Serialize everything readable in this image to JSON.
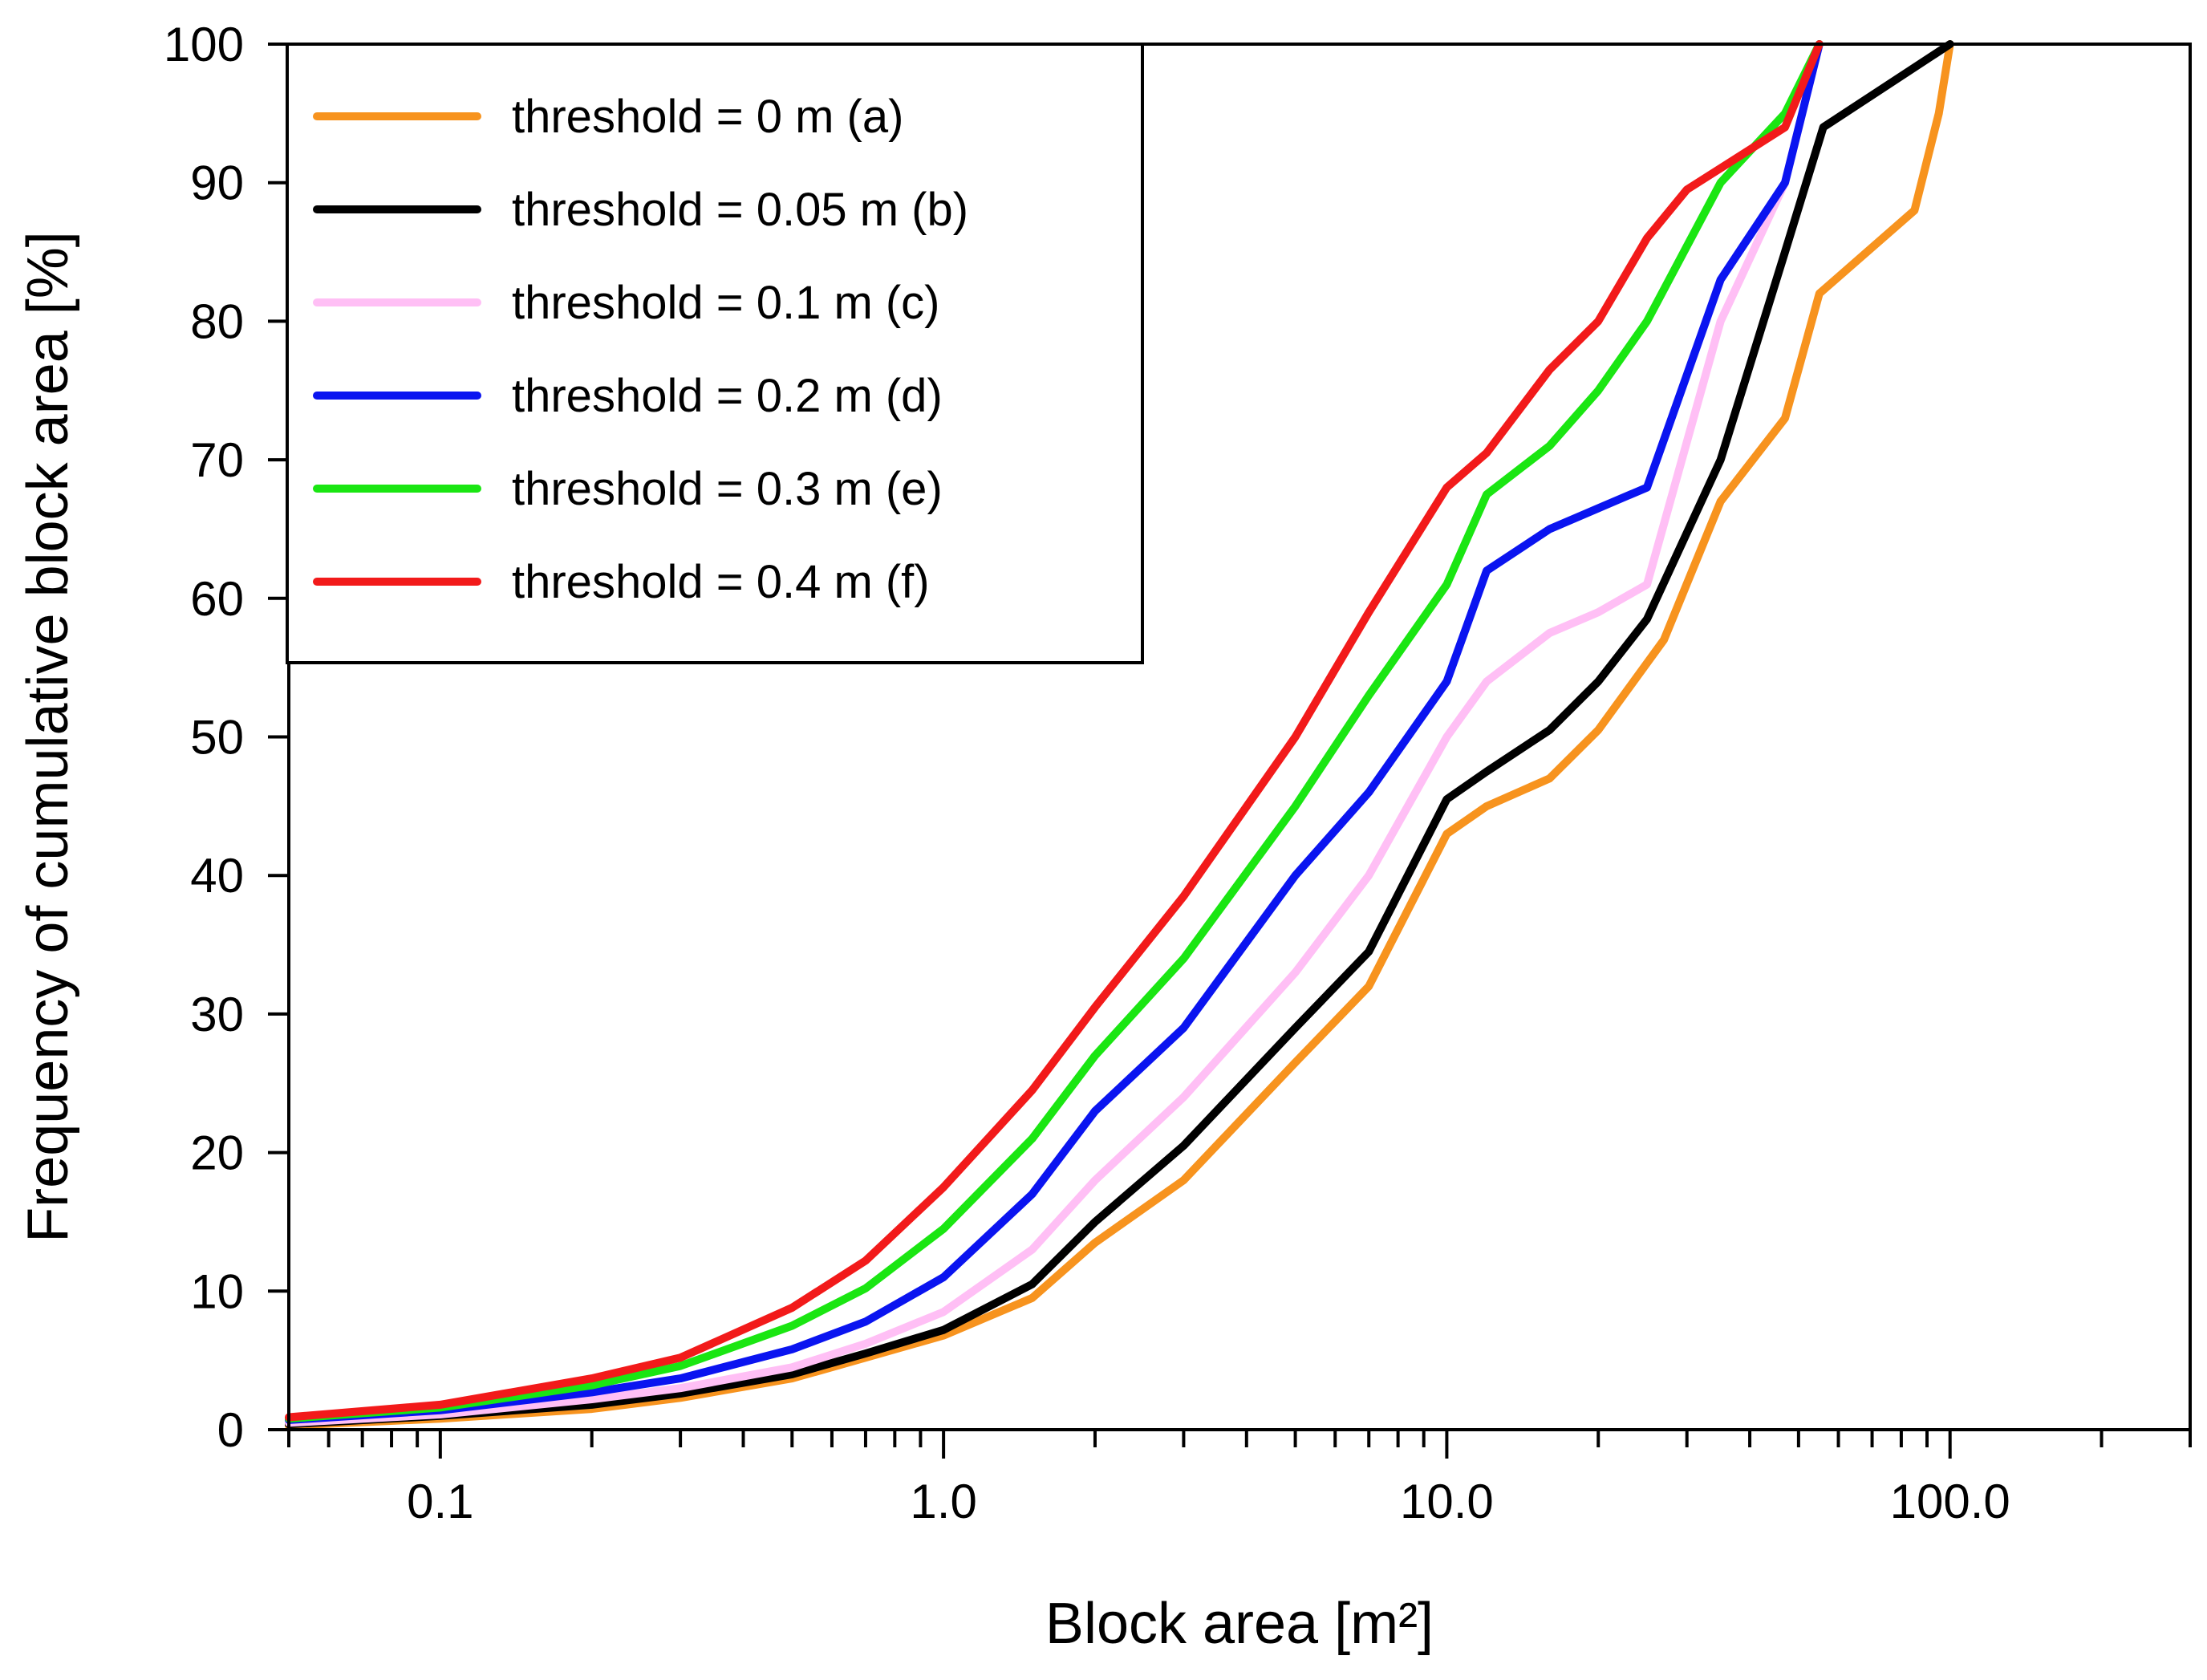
{
  "chart_data": {
    "type": "line",
    "title": "",
    "xlabel": "Block area [m²]",
    "ylabel": "Frequency of cumulative block area [%]",
    "xscale": "log",
    "xlim": [
      0.05,
      300
    ],
    "ylim": [
      0,
      100
    ],
    "x_tick_labels": [
      {
        "value": 0.1,
        "label": "0.1"
      },
      {
        "value": 1,
        "label": "1.0"
      },
      {
        "value": 10,
        "label": "10.0"
      },
      {
        "value": 100,
        "label": "100.0"
      }
    ],
    "y_ticks": [
      0,
      10,
      20,
      30,
      40,
      50,
      60,
      70,
      80,
      90,
      100
    ],
    "grid": false,
    "legend_position": "top-left",
    "series": [
      {
        "name": "threshold = 0 m (a)",
        "color": "#F7931E",
        "x": [
          0.05,
          0.1,
          0.2,
          0.3,
          0.5,
          0.7,
          1.0,
          1.5,
          2.0,
          3.0,
          5.0,
          7.0,
          10.0,
          12.0,
          16.0,
          20.0,
          27.0,
          35.0,
          47.0,
          55.0,
          85.0,
          95.0,
          100.0
        ],
        "y": [
          0.3,
          0.8,
          1.5,
          2.3,
          3.7,
          5.2,
          6.8,
          9.5,
          13.5,
          18.0,
          26.5,
          32.0,
          43.0,
          45.0,
          47.0,
          50.5,
          57.0,
          67.0,
          73.0,
          82.0,
          88.0,
          95.0,
          100.0
        ]
      },
      {
        "name": "threshold = 0.05 m (b)",
        "color": "#000000",
        "x": [
          0.05,
          0.1,
          0.2,
          0.3,
          0.5,
          0.7,
          1.0,
          1.5,
          2.0,
          3.0,
          5.0,
          7.0,
          10.0,
          12.0,
          16.0,
          20.0,
          25.0,
          35.0,
          47.0,
          56.0,
          100.0
        ],
        "y": [
          0.4,
          1.0,
          1.8,
          2.6,
          4.0,
          5.5,
          7.2,
          10.5,
          15.0,
          20.5,
          29.0,
          34.5,
          45.5,
          47.5,
          50.5,
          54.0,
          58.5,
          70.0,
          85.0,
          94.0,
          100.0
        ]
      },
      {
        "name": "threshold = 0.1 m (c)",
        "color": "#FFBFF5",
        "x": [
          0.05,
          0.1,
          0.2,
          0.3,
          0.5,
          0.7,
          1.0,
          1.5,
          2.0,
          3.0,
          5.0,
          7.0,
          10.0,
          12.0,
          16.0,
          20.0,
          25.0,
          35.0,
          47.0,
          55.0
        ],
        "y": [
          0.5,
          1.1,
          2.2,
          3.0,
          4.5,
          6.2,
          8.5,
          13.0,
          18.0,
          24.0,
          33.0,
          40.0,
          50.0,
          54.0,
          57.5,
          59.0,
          61.0,
          80.0,
          90.0,
          100.0
        ]
      },
      {
        "name": "threshold = 0.2 m (d)",
        "color": "#0A14F0",
        "x": [
          0.05,
          0.1,
          0.2,
          0.3,
          0.5,
          0.7,
          1.0,
          1.5,
          2.0,
          3.0,
          5.0,
          7.0,
          10.0,
          12.0,
          16.0,
          20.0,
          25.0,
          35.0,
          47.0,
          55.0
        ],
        "y": [
          0.7,
          1.4,
          2.7,
          3.7,
          5.8,
          7.8,
          11.0,
          17.0,
          23.0,
          29.0,
          40.0,
          46.0,
          54.0,
          62.0,
          65.0,
          66.5,
          68.0,
          83.0,
          90.0,
          100.0
        ]
      },
      {
        "name": "threshold = 0.3 m (e)",
        "color": "#1AE612",
        "x": [
          0.05,
          0.1,
          0.2,
          0.3,
          0.5,
          0.7,
          1.0,
          1.5,
          2.0,
          3.0,
          5.0,
          7.0,
          10.0,
          12.0,
          16.0,
          20.0,
          25.0,
          35.0,
          47.0,
          55.0
        ],
        "y": [
          0.8,
          1.6,
          3.2,
          4.6,
          7.5,
          10.2,
          14.5,
          21.0,
          27.0,
          34.0,
          45.0,
          53.0,
          61.0,
          67.5,
          71.0,
          75.0,
          80.0,
          90.0,
          95.0,
          100.0
        ]
      },
      {
        "name": "threshold = 0.4 m (f)",
        "color": "#F21A1A",
        "x": [
          0.05,
          0.1,
          0.2,
          0.3,
          0.5,
          0.7,
          1.0,
          1.5,
          2.0,
          3.0,
          5.0,
          7.0,
          10.0,
          12.0,
          16.0,
          20.0,
          25.0,
          30.0,
          47.0,
          55.0
        ],
        "y": [
          0.9,
          1.8,
          3.7,
          5.2,
          8.8,
          12.2,
          17.5,
          24.5,
          30.5,
          38.5,
          50.0,
          59.0,
          68.0,
          70.5,
          76.5,
          80.0,
          86.0,
          89.5,
          94.0,
          100.0
        ]
      }
    ]
  }
}
